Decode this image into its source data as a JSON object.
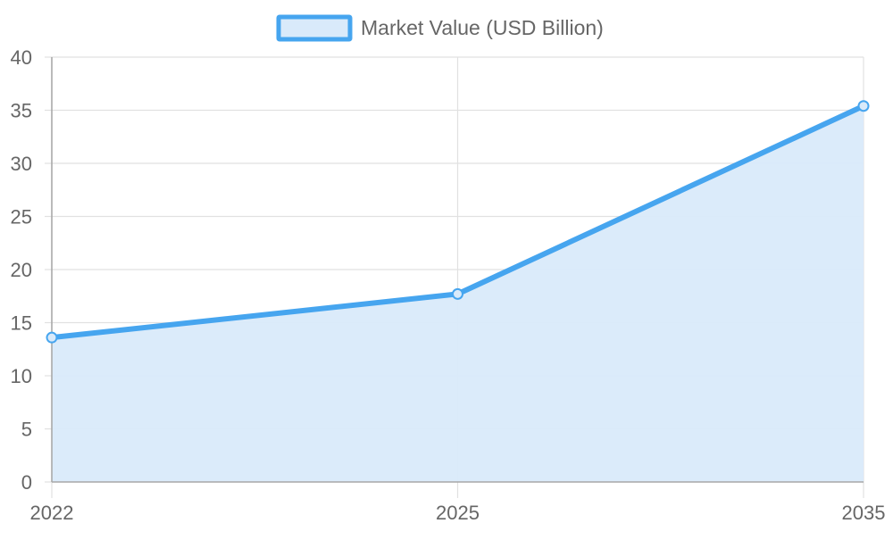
{
  "chart_data": {
    "type": "area",
    "categories": [
      "2022",
      "2025",
      "2035"
    ],
    "series": [
      {
        "name": "Market Value (USD Billion)",
        "values": [
          13.6,
          17.7,
          35.4
        ],
        "line_color": "#46a5ef",
        "fill_color": "#d9eafa"
      }
    ],
    "xlabel": "",
    "ylabel": "",
    "ylim": [
      0,
      40
    ],
    "yticks": [
      0,
      5,
      10,
      15,
      20,
      25,
      30,
      35,
      40
    ],
    "grid": true,
    "legend_position": "top-center",
    "colors": {
      "grid": "#e1e1e1",
      "axis": "#a8a8a8",
      "tick_text": "#666666"
    }
  }
}
